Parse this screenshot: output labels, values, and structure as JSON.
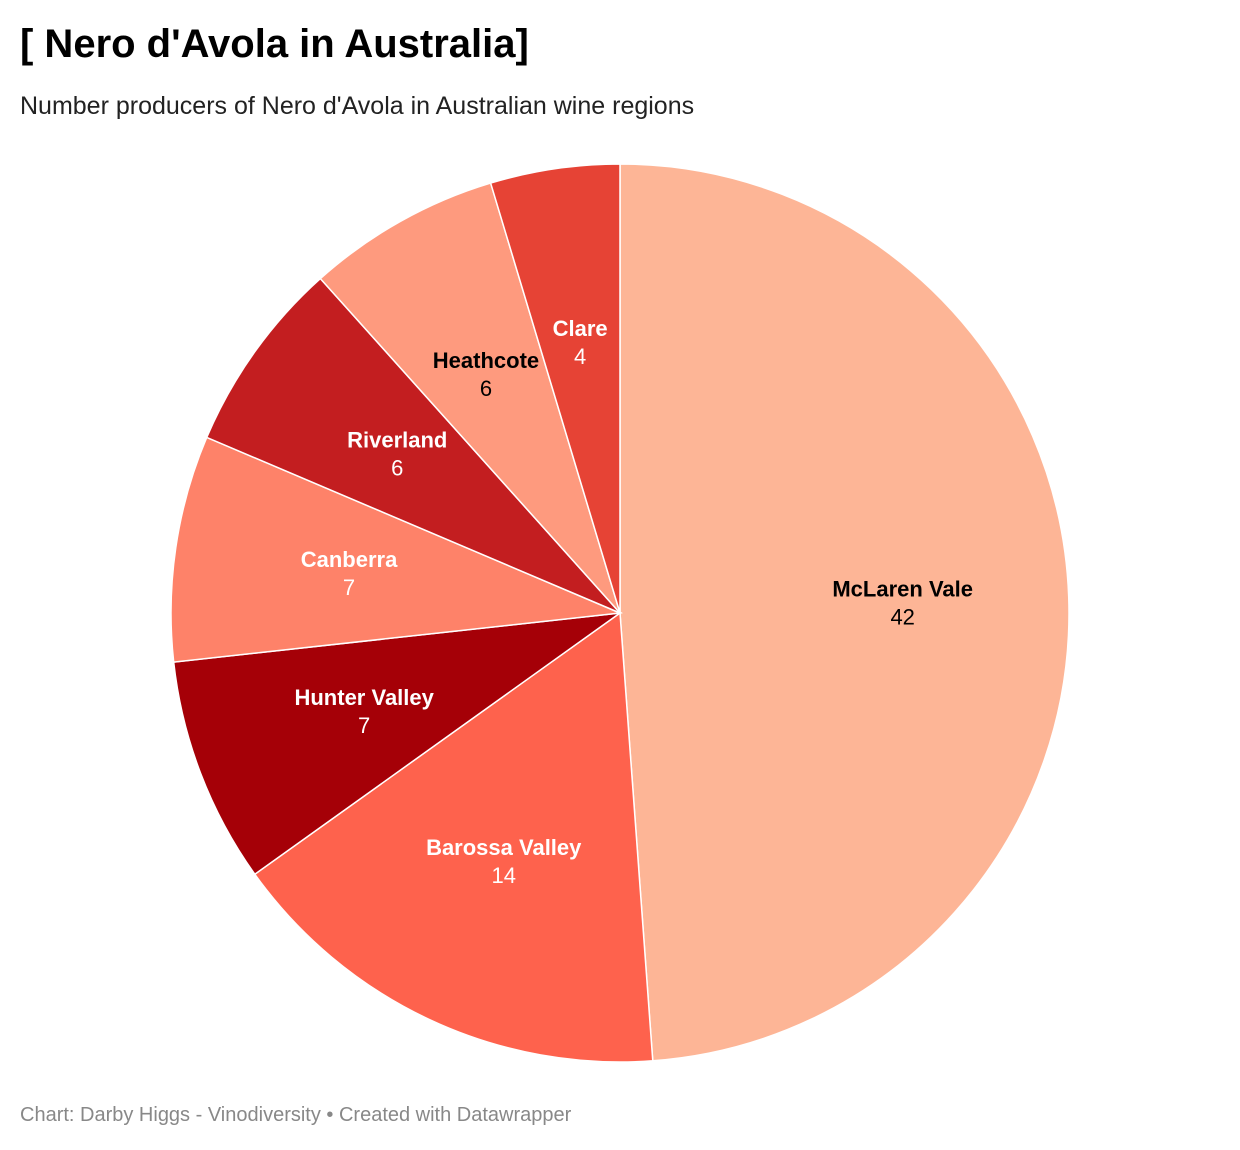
{
  "header": {
    "title": "[ Nero d'Avola in Australia]",
    "subtitle": "Number producers of Nero d'Avola in Australian wine regions"
  },
  "footer": {
    "credit": "Chart: Darby Higgs - Vinodiversity • Created with Datawrapper"
  },
  "chart_data": {
    "type": "pie",
    "title": "[ Nero d'Avola in Australia]",
    "subtitle": "Number producers of Nero d'Avola in Australian wine regions",
    "slices": [
      {
        "label": "McLaren Vale",
        "value": 42,
        "color": "#FDB596",
        "text_color": "#000000"
      },
      {
        "label": "Barossa Valley",
        "value": 14,
        "color": "#FE624D",
        "text_color": "#ffffff"
      },
      {
        "label": "Hunter Valley",
        "value": 7,
        "color": "#A50007",
        "text_color": "#ffffff"
      },
      {
        "label": "Canberra",
        "value": 7,
        "color": "#FE8269",
        "text_color": "#ffffff"
      },
      {
        "label": "Riverland",
        "value": 6,
        "color": "#C31E20",
        "text_color": "#ffffff"
      },
      {
        "label": "Heathcote",
        "value": 6,
        "color": "#FE9A7E",
        "text_color": "#000000"
      },
      {
        "label": "Clare",
        "value": 4,
        "color": "#E64335",
        "text_color": "#ffffff"
      }
    ],
    "legend": "none",
    "data_labels": "inside"
  }
}
